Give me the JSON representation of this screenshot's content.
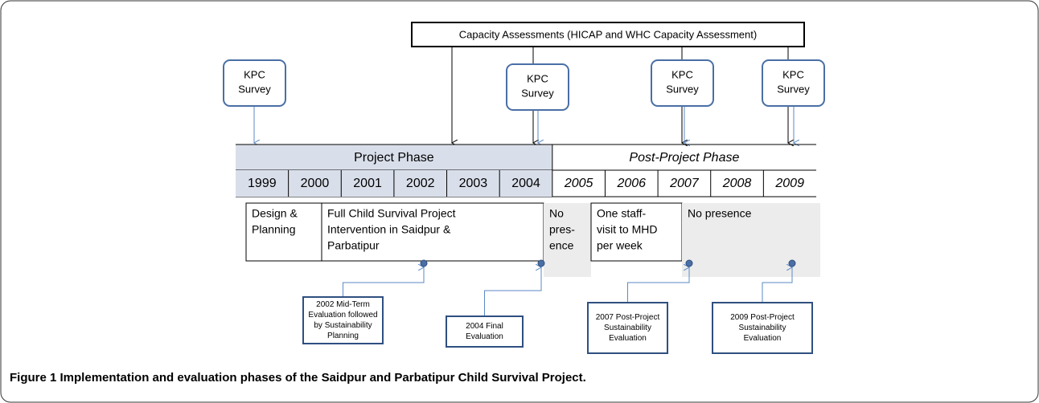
{
  "header": {
    "capacity": "Capacity Assessments (HICAP and WHC Capacity Assessment)"
  },
  "surveys": [
    [
      "KPC",
      "Survey"
    ],
    [
      "KPC",
      "Survey"
    ],
    [
      "KPC",
      "Survey"
    ],
    [
      "KPC",
      "Survey"
    ]
  ],
  "phases": [
    "Project Phase",
    "Post-Project Phase"
  ],
  "years": [
    "1999",
    "2000",
    "2001",
    "2002",
    "2003",
    "2004",
    "2005",
    "2006",
    "2007",
    "2008",
    "2009"
  ],
  "activities": [
    [
      "Design &",
      "Planning"
    ],
    [
      "Full Child Survival Project",
      "Intervention in Saidpur &",
      "Parbatipur"
    ],
    [
      "No",
      "pres-",
      "ence"
    ],
    [
      "One staff-",
      "visit to MHD",
      "per week"
    ],
    [
      "No presence"
    ]
  ],
  "evaluations": [
    [
      "2002 Mid-Term",
      "Evaluation followed",
      "by Sustainability",
      "Planning"
    ],
    [
      "2004 Final",
      "Evaluation"
    ],
    [
      "2007 Post-Project",
      "Sustainability",
      "Evaluation"
    ],
    [
      "2009 Post-Project",
      "Sustainability",
      "Evaluation"
    ]
  ],
  "caption": "Figure 1 Implementation and evaluation phases of the Saidpur and Parbatipur Child Survival Project."
}
